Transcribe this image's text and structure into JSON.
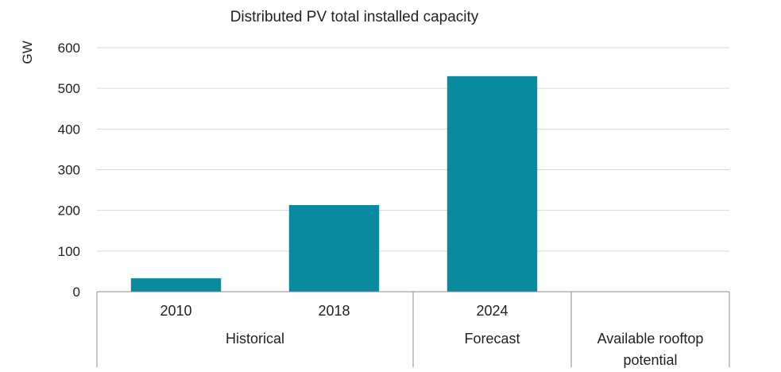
{
  "chart_data": {
    "type": "bar",
    "title": "Distributed PV total installed capacity",
    "ylabel": "GW",
    "xlabel": "",
    "ylim": [
      0,
      600
    ],
    "yticks": [
      0,
      100,
      200,
      300,
      400,
      500,
      600
    ],
    "grid": true,
    "legend": "none",
    "categories": [
      "2010",
      "2018",
      "2024",
      ""
    ],
    "values": [
      33,
      213,
      530,
      null
    ],
    "groups": [
      {
        "label": "Historical",
        "categories": [
          "2010",
          "2018"
        ]
      },
      {
        "label": "Forecast",
        "categories": [
          "2024"
        ]
      },
      {
        "label": "Available rooftop potential",
        "label_lines": [
          "Available rooftop",
          "potential"
        ],
        "categories": [
          ""
        ]
      }
    ],
    "colors": {
      "bar": "#0a8a9f",
      "grid": "#d9d9d9",
      "axis": "#8c8c8c"
    }
  }
}
